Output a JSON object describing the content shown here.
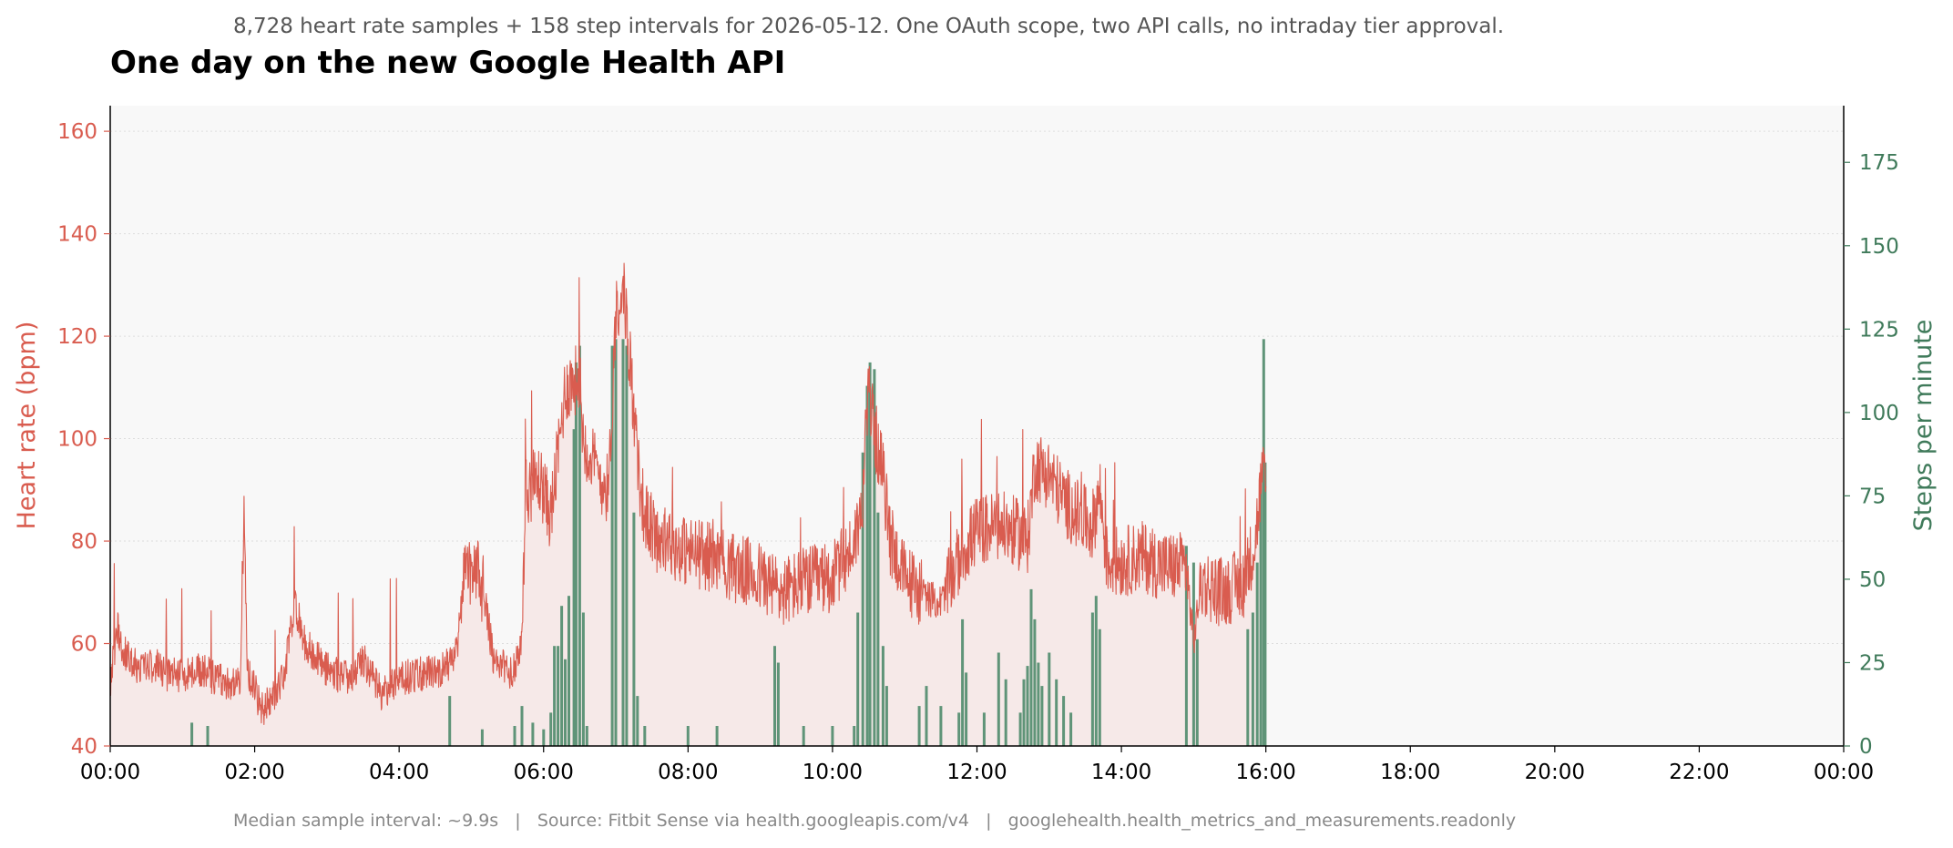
{
  "header": {
    "subtitle": "8,728 heart rate samples + 158 step intervals for 2026-05-12. One OAuth scope, two API calls, no intraday tier approval.",
    "title": "One day on the new Google Health API"
  },
  "footer": {
    "text": "Median sample interval: ~9.9s   |   Source: Fitbit Sense via health.googleapis.com/v4   |   googlehealth.health_metrics_and_measurements.readonly"
  },
  "colors": {
    "heart_rate": "#d95c4f",
    "heart_fill": "#f6e9e8",
    "steps": "#5f9478",
    "steps_axis": "#3f7a5a",
    "plot_bg": "#f8f8f8"
  },
  "chart_data": {
    "type": "line",
    "x_axis": {
      "ticks": [
        "00:00",
        "02:00",
        "04:00",
        "06:00",
        "08:00",
        "10:00",
        "12:00",
        "14:00",
        "16:00",
        "18:00",
        "20:00",
        "22:00",
        "00:00"
      ],
      "range_hours": [
        0,
        24
      ]
    },
    "y_left": {
      "label": "Heart rate (bpm)",
      "ylim": [
        40,
        165
      ],
      "ticks": [
        40,
        60,
        80,
        100,
        120,
        140,
        160
      ],
      "grid": true
    },
    "y_right": {
      "label": "Steps per minute",
      "ylim": [
        0,
        192
      ],
      "ticks": [
        0,
        25,
        50,
        75,
        100,
        125,
        150,
        175
      ]
    },
    "series": [
      {
        "name": "Heart rate",
        "axis": "left",
        "style": "line-with-fill",
        "points": [
          [
            0.0,
            52
          ],
          [
            0.1,
            63
          ],
          [
            0.2,
            58
          ],
          [
            0.4,
            55
          ],
          [
            0.6,
            56
          ],
          [
            0.8,
            54
          ],
          [
            1.0,
            54
          ],
          [
            1.2,
            55
          ],
          [
            1.5,
            53
          ],
          [
            1.8,
            52
          ],
          [
            1.85,
            85
          ],
          [
            1.9,
            55
          ],
          [
            2.1,
            47
          ],
          [
            2.4,
            53
          ],
          [
            2.55,
            68
          ],
          [
            2.7,
            60
          ],
          [
            3.0,
            55
          ],
          [
            3.3,
            53
          ],
          [
            3.5,
            57
          ],
          [
            3.75,
            50
          ],
          [
            4.0,
            53
          ],
          [
            4.3,
            54
          ],
          [
            4.6,
            55
          ],
          [
            4.8,
            58
          ],
          [
            4.9,
            73
          ],
          [
            5.1,
            74
          ],
          [
            5.2,
            68
          ],
          [
            5.3,
            57
          ],
          [
            5.55,
            54
          ],
          [
            5.7,
            60
          ],
          [
            5.75,
            90
          ],
          [
            5.95,
            92
          ],
          [
            6.1,
            85
          ],
          [
            6.2,
            97
          ],
          [
            6.3,
            110
          ],
          [
            6.5,
            112
          ],
          [
            6.55,
            100
          ],
          [
            6.7,
            95
          ],
          [
            6.8,
            92
          ],
          [
            6.9,
            90
          ],
          [
            7.0,
            125
          ],
          [
            7.1,
            130
          ],
          [
            7.2,
            115
          ],
          [
            7.3,
            95
          ],
          [
            7.4,
            85
          ],
          [
            7.6,
            80
          ],
          [
            8.0,
            78
          ],
          [
            8.3,
            77
          ],
          [
            8.6,
            75
          ],
          [
            9.0,
            73
          ],
          [
            9.3,
            70
          ],
          [
            9.6,
            72
          ],
          [
            10.0,
            73
          ],
          [
            10.25,
            78
          ],
          [
            10.4,
            85
          ],
          [
            10.5,
            110
          ],
          [
            10.6,
            100
          ],
          [
            10.7,
            93
          ],
          [
            10.8,
            80
          ],
          [
            11.0,
            73
          ],
          [
            11.3,
            69
          ],
          [
            11.5,
            68
          ],
          [
            11.8,
            78
          ],
          [
            12.0,
            82
          ],
          [
            12.3,
            83
          ],
          [
            12.5,
            82
          ],
          [
            12.7,
            80
          ],
          [
            12.8,
            95
          ],
          [
            13.0,
            93
          ],
          [
            13.2,
            88
          ],
          [
            13.4,
            85
          ],
          [
            13.6,
            83
          ],
          [
            13.7,
            90
          ],
          [
            13.8,
            76
          ],
          [
            14.0,
            76
          ],
          [
            14.3,
            77
          ],
          [
            14.6,
            75
          ],
          [
            14.9,
            75
          ],
          [
            15.0,
            60
          ],
          [
            15.1,
            72
          ],
          [
            15.4,
            70
          ],
          [
            15.7,
            72
          ],
          [
            15.85,
            80
          ],
          [
            15.95,
            93
          ],
          [
            16.0,
            90
          ]
        ]
      },
      {
        "name": "Steps",
        "axis": "right",
        "style": "bars",
        "points": [
          [
            1.13,
            7
          ],
          [
            1.35,
            6
          ],
          [
            4.7,
            15
          ],
          [
            5.15,
            5
          ],
          [
            5.6,
            6
          ],
          [
            5.7,
            12
          ],
          [
            5.85,
            7
          ],
          [
            6.0,
            5
          ],
          [
            6.1,
            10
          ],
          [
            6.15,
            30
          ],
          [
            6.2,
            30
          ],
          [
            6.25,
            42
          ],
          [
            6.3,
            26
          ],
          [
            6.35,
            45
          ],
          [
            6.42,
            95
          ],
          [
            6.45,
            115
          ],
          [
            6.5,
            120
          ],
          [
            6.55,
            40
          ],
          [
            6.6,
            6
          ],
          [
            6.95,
            120
          ],
          [
            7.0,
            122
          ],
          [
            7.1,
            122
          ],
          [
            7.15,
            120
          ],
          [
            7.25,
            70
          ],
          [
            7.3,
            15
          ],
          [
            7.4,
            6
          ],
          [
            8.0,
            6
          ],
          [
            8.4,
            6
          ],
          [
            9.2,
            30
          ],
          [
            9.25,
            25
          ],
          [
            9.6,
            6
          ],
          [
            10.0,
            6
          ],
          [
            10.3,
            6
          ],
          [
            10.35,
            40
          ],
          [
            10.42,
            88
          ],
          [
            10.48,
            108
          ],
          [
            10.52,
            115
          ],
          [
            10.58,
            113
          ],
          [
            10.63,
            70
          ],
          [
            10.7,
            30
          ],
          [
            10.75,
            18
          ],
          [
            11.2,
            12
          ],
          [
            11.3,
            18
          ],
          [
            11.5,
            12
          ],
          [
            11.75,
            10
          ],
          [
            11.8,
            38
          ],
          [
            11.85,
            22
          ],
          [
            12.1,
            10
          ],
          [
            12.3,
            28
          ],
          [
            12.4,
            20
          ],
          [
            12.6,
            10
          ],
          [
            12.65,
            20
          ],
          [
            12.7,
            24
          ],
          [
            12.75,
            47
          ],
          [
            12.8,
            38
          ],
          [
            12.85,
            25
          ],
          [
            12.9,
            18
          ],
          [
            13.0,
            28
          ],
          [
            13.1,
            20
          ],
          [
            13.2,
            15
          ],
          [
            13.3,
            10
          ],
          [
            13.6,
            40
          ],
          [
            13.65,
            45
          ],
          [
            13.7,
            35
          ],
          [
            14.9,
            60
          ],
          [
            15.0,
            55
          ],
          [
            15.05,
            32
          ],
          [
            15.75,
            35
          ],
          [
            15.82,
            40
          ],
          [
            15.88,
            55
          ],
          [
            15.93,
            80
          ],
          [
            15.97,
            122
          ],
          [
            15.99,
            85
          ]
        ]
      }
    ]
  }
}
